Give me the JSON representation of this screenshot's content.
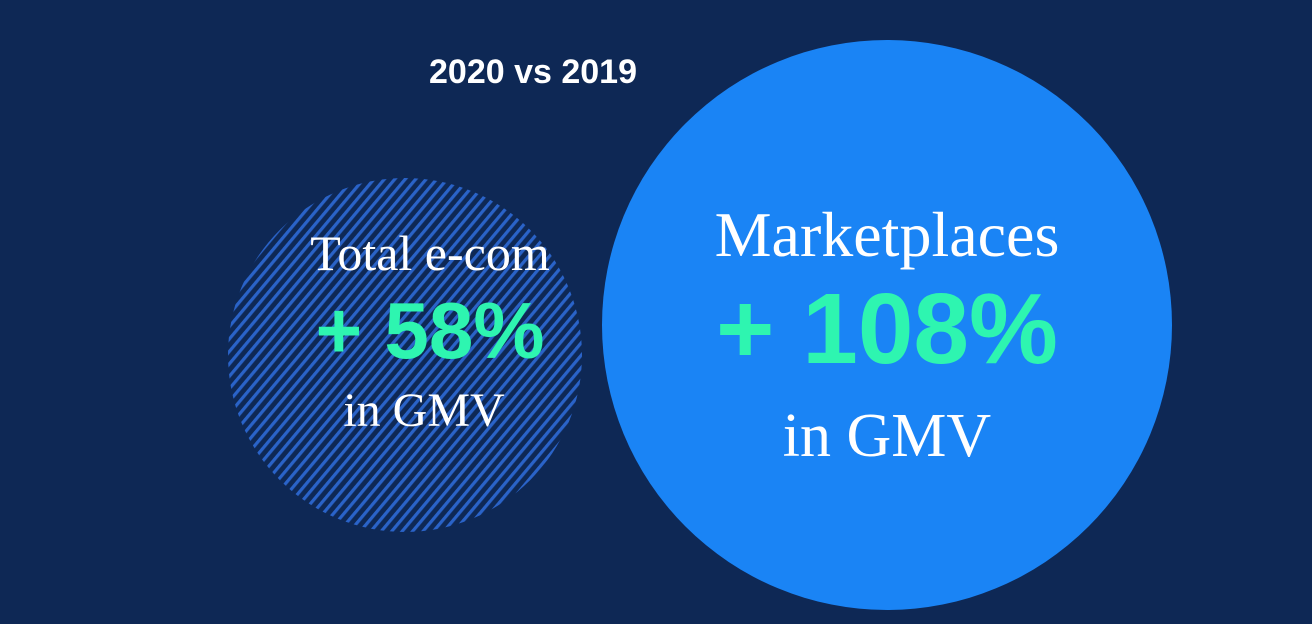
{
  "title": "2020 vs 2019",
  "left_circle": {
    "label": "Total e-com",
    "value": "+ 58%",
    "suffix": "in GMV",
    "style": "hatched"
  },
  "right_circle": {
    "label": "Marketplaces",
    "value": "+ 108%",
    "suffix": "in GMV",
    "style": "solid"
  },
  "colors": {
    "background": "#0e2855",
    "hatch": "#2a63c8",
    "marketplace_circle": "#1a84f5",
    "highlight": "#2ef5b0",
    "text": "#ffffff"
  }
}
